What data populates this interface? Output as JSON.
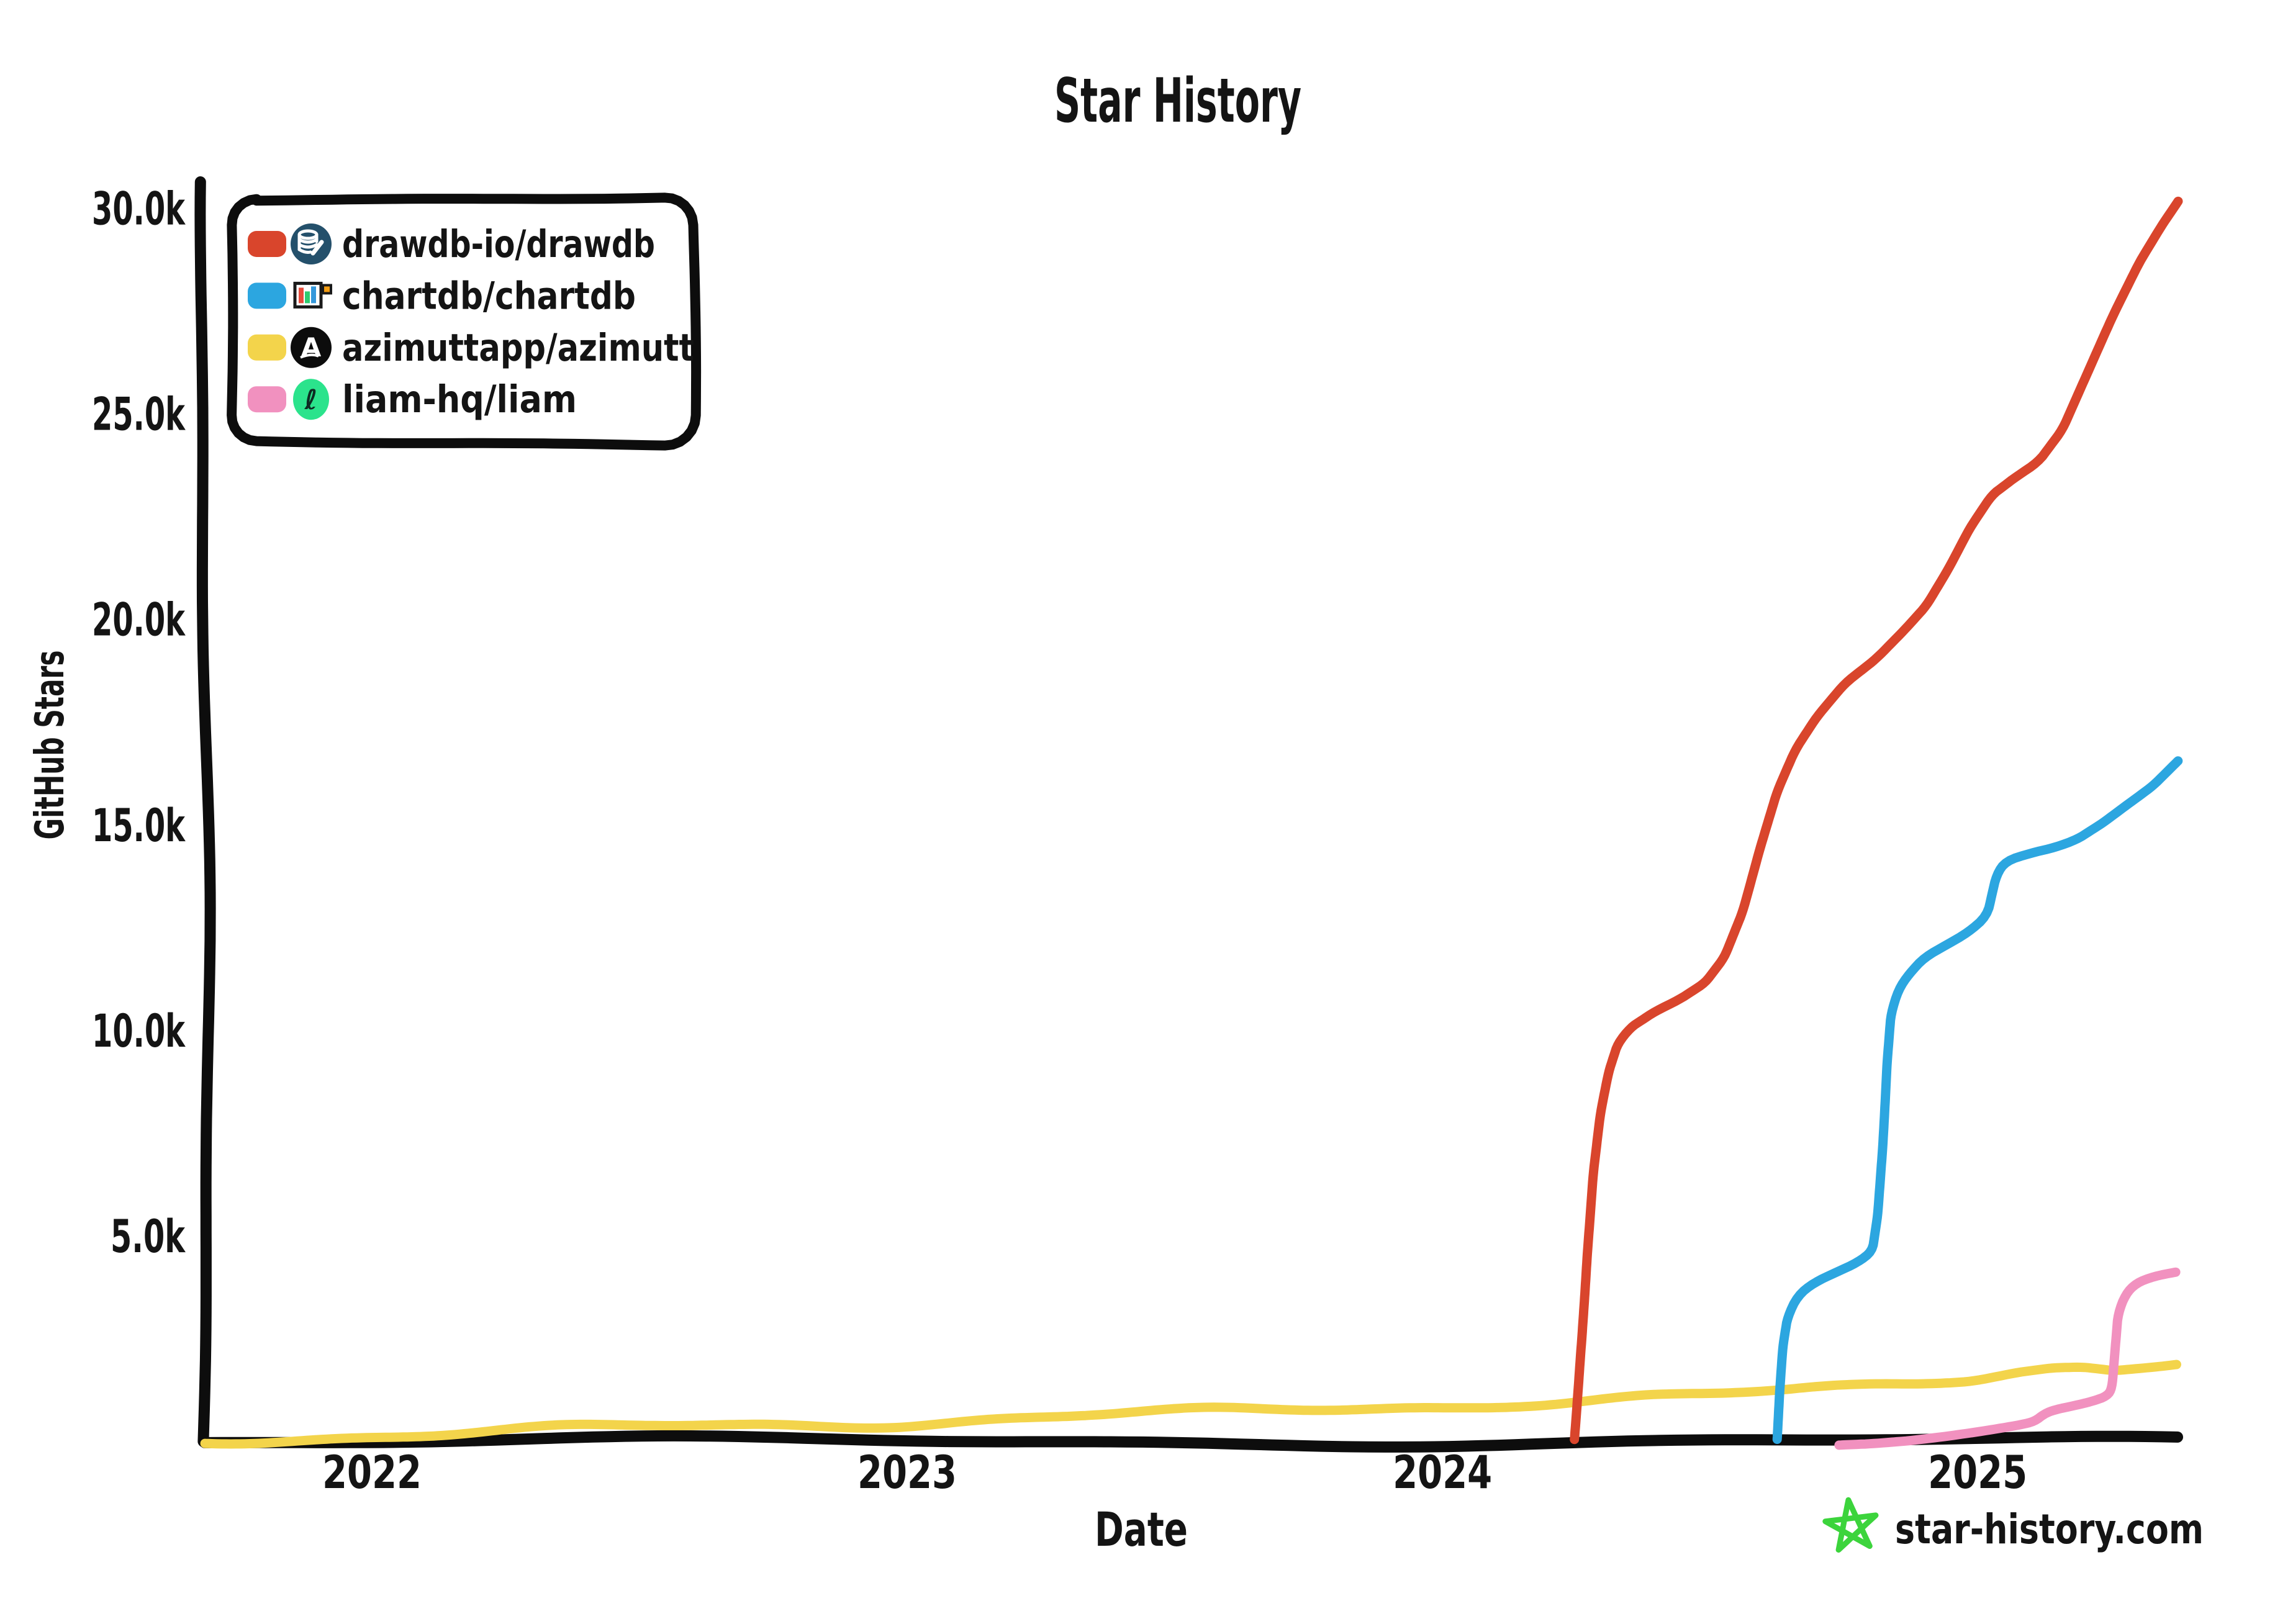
{
  "title": "Star History",
  "axes": {
    "xlabel": "Date",
    "ylabel": "GitHub Stars"
  },
  "watermark": {
    "text": "star-history.com",
    "text_color": "#7a7a7a",
    "star_color": "#3cd43c"
  },
  "style": {
    "axis_color": "#0d0d0d",
    "background": "#ffffff",
    "legend_border": "#0d0d0d"
  },
  "legend": [
    {
      "label": "drawdb-io/drawdb",
      "swatch_color": "#d9452c",
      "icon": "drawdb-logo"
    },
    {
      "label": "chartdb/chartdb",
      "swatch_color": "#2ca6e0",
      "icon": "chartdb-logo"
    },
    {
      "label": "azimuttapp/azimutt",
      "swatch_color": "#f3d44b",
      "icon": "azimutt-logo"
    },
    {
      "label": "liam-hq/liam",
      "swatch_color": "#f191bf",
      "icon": "liam-logo"
    }
  ],
  "chart_data": {
    "type": "line",
    "title": "Star History",
    "xlabel": "Date",
    "ylabel": "GitHub Stars",
    "x_range": [
      2021.688,
      2025.371
    ],
    "y_range": [
      0,
      30100
    ],
    "grid": false,
    "legend_position": "upper left",
    "x_ticks": [
      {
        "value": 2022,
        "label": "2022"
      },
      {
        "value": 2023,
        "label": "2023"
      },
      {
        "value": 2024,
        "label": "2024"
      },
      {
        "value": 2025,
        "label": "2025"
      }
    ],
    "y_ticks": [
      {
        "value": 5000,
        "label": "5.0k"
      },
      {
        "value": 10000,
        "label": "10.0k"
      },
      {
        "value": 15000,
        "label": "15.0k"
      },
      {
        "value": 20000,
        "label": "20.0k"
      },
      {
        "value": 25000,
        "label": "25.0k"
      },
      {
        "value": 30000,
        "label": "30.0k"
      }
    ],
    "series": [
      {
        "name": "azimuttapp/azimutt",
        "color": "#f3d44b",
        "points": [
          [
            2021.688,
            20
          ],
          [
            2021.828,
            80
          ],
          [
            2022.013,
            160
          ],
          [
            2022.176,
            220
          ],
          [
            2022.351,
            280
          ],
          [
            2022.525,
            340
          ],
          [
            2022.699,
            380
          ],
          [
            2022.85,
            430
          ],
          [
            2023.0,
            480
          ],
          [
            2023.164,
            560
          ],
          [
            2023.338,
            630
          ],
          [
            2023.512,
            680
          ],
          [
            2023.663,
            730
          ],
          [
            2023.826,
            800
          ],
          [
            2024.006,
            880
          ],
          [
            2024.139,
            970
          ],
          [
            2024.256,
            1020
          ],
          [
            2024.383,
            1080
          ],
          [
            2024.511,
            1120
          ],
          [
            2024.639,
            1180
          ],
          [
            2024.766,
            1280
          ],
          [
            2024.883,
            1400
          ],
          [
            2024.987,
            1550
          ],
          [
            2025.068,
            1750
          ],
          [
            2025.138,
            1850
          ],
          [
            2025.196,
            1870
          ],
          [
            2025.254,
            1800
          ],
          [
            2025.312,
            1880
          ],
          [
            2025.371,
            1950
          ]
        ]
      },
      {
        "name": "liam-hq/liam",
        "color": "#f191bf",
        "points": [
          [
            2024.741,
            -70
          ],
          [
            2024.801,
            -40
          ],
          [
            2024.871,
            30
          ],
          [
            2024.941,
            140
          ],
          [
            2025.01,
            270
          ],
          [
            2025.08,
            420
          ],
          [
            2025.106,
            500
          ],
          [
            2025.124,
            680
          ],
          [
            2025.144,
            780
          ],
          [
            2025.179,
            870
          ],
          [
            2025.214,
            970
          ],
          [
            2025.243,
            1100
          ],
          [
            2025.252,
            1300
          ],
          [
            2025.259,
            2200
          ],
          [
            2025.266,
            3100
          ],
          [
            2025.28,
            3550
          ],
          [
            2025.299,
            3800
          ],
          [
            2025.33,
            3950
          ],
          [
            2025.371,
            4050
          ]
        ]
      },
      {
        "name": "chartdb/chartdb",
        "color": "#2ca6e0",
        "points": [
          [
            2024.628,
            50
          ],
          [
            2024.634,
            1200
          ],
          [
            2024.641,
            2300
          ],
          [
            2024.65,
            3000
          ],
          [
            2024.668,
            3500
          ],
          [
            2024.697,
            3800
          ],
          [
            2024.737,
            4050
          ],
          [
            2024.778,
            4300
          ],
          [
            2024.807,
            4600
          ],
          [
            2024.816,
            5500
          ],
          [
            2024.823,
            7200
          ],
          [
            2024.829,
            9200
          ],
          [
            2024.836,
            10400
          ],
          [
            2024.85,
            11000
          ],
          [
            2024.871,
            11400
          ],
          [
            2024.9,
            11800
          ],
          [
            2024.941,
            12100
          ],
          [
            2024.981,
            12400
          ],
          [
            2025.016,
            12800
          ],
          [
            2025.033,
            13800
          ],
          [
            2025.051,
            14150
          ],
          [
            2025.097,
            14350
          ],
          [
            2025.144,
            14500
          ],
          [
            2025.184,
            14700
          ],
          [
            2025.231,
            15100
          ],
          [
            2025.277,
            15550
          ],
          [
            2025.324,
            16000
          ],
          [
            2025.371,
            16600
          ]
        ]
      },
      {
        "name": "drawdb-io/drawdb",
        "color": "#d9452c",
        "points": [
          [
            2024.247,
            50
          ],
          [
            2024.255,
            2000
          ],
          [
            2024.267,
            4500
          ],
          [
            2024.279,
            6500
          ],
          [
            2024.293,
            8000
          ],
          [
            2024.308,
            9000
          ],
          [
            2024.325,
            9700
          ],
          [
            2024.349,
            10100
          ],
          [
            2024.395,
            10500
          ],
          [
            2024.441,
            10800
          ],
          [
            2024.488,
            11200
          ],
          [
            2024.523,
            11800
          ],
          [
            2024.558,
            12900
          ],
          [
            2024.592,
            14400
          ],
          [
            2024.627,
            15800
          ],
          [
            2024.662,
            16800
          ],
          [
            2024.703,
            17600
          ],
          [
            2024.755,
            18400
          ],
          [
            2024.813,
            19000
          ],
          [
            2024.865,
            19700
          ],
          [
            2024.906,
            20300
          ],
          [
            2024.947,
            21200
          ],
          [
            2024.987,
            22200
          ],
          [
            2025.028,
            23000
          ],
          [
            2025.074,
            23450
          ],
          [
            2025.115,
            23800
          ],
          [
            2025.161,
            24600
          ],
          [
            2025.208,
            26000
          ],
          [
            2025.254,
            27400
          ],
          [
            2025.301,
            28700
          ],
          [
            2025.341,
            29600
          ],
          [
            2025.371,
            30200
          ]
        ]
      }
    ]
  }
}
